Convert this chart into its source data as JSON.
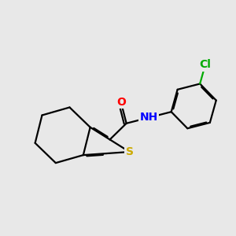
{
  "bg_color": "#e8e8e8",
  "bond_color": "#000000",
  "bond_width": 1.6,
  "atom_colors": {
    "O": "#ff0000",
    "N": "#0000ff",
    "S": "#ccaa00",
    "Cl": "#00aa00",
    "C": "#000000"
  },
  "font_size_atom": 10
}
